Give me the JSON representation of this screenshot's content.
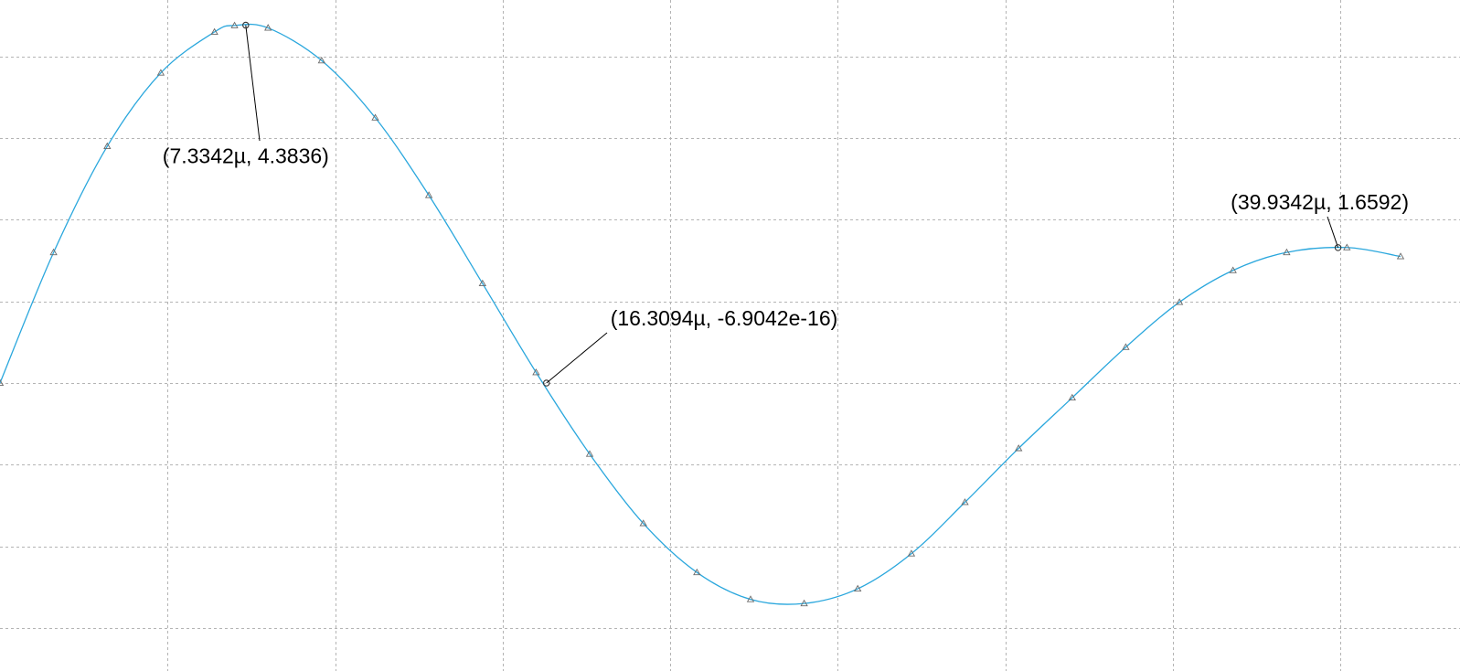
{
  "chart_data": {
    "type": "line",
    "title": "",
    "xlabel": "",
    "ylabel": "",
    "grid": true,
    "x_unit_suffix": "µ",
    "xlim": [
      0,
      42.6
    ],
    "ylim": [
      -5.25,
      4.6
    ],
    "x_grid_step": 5,
    "y_grid_values": [
      4,
      3,
      2,
      1,
      0,
      -1,
      -2,
      -3
    ],
    "series": [
      {
        "color": "#2aa7dd",
        "marker": "triangle",
        "x": [
          0,
          1.6,
          3.2,
          4.8,
          6.4,
          7.0,
          8.0,
          9.6,
          11.2,
          12.8,
          14.4,
          16.0,
          17.6,
          19.2,
          20.8,
          22.4,
          24.0,
          25.6,
          27.2,
          28.8,
          30.4,
          32.0,
          33.6,
          35.2,
          36.8,
          38.4,
          40.2,
          41.8
        ],
        "y": [
          0,
          1.6,
          2.9,
          3.8,
          4.3,
          4.38,
          4.35,
          3.95,
          3.25,
          2.3,
          1.22,
          0.13,
          -0.87,
          -1.72,
          -2.32,
          -2.65,
          -2.7,
          -2.52,
          -2.09,
          -1.46,
          -0.8,
          -0.18,
          0.44,
          0.99,
          1.38,
          1.6,
          1.66,
          1.55
        ]
      }
    ],
    "annotations": [
      {
        "label": "(7.3342µ, 4.3836)",
        "x": 7.3342,
        "y": 4.3836
      },
      {
        "label": "(16.3094µ, -6.9042e-16)",
        "x": 16.3094,
        "y": -6.9042e-16
      },
      {
        "label": "(39.9342µ, 1.6592)",
        "x": 39.9342,
        "y": 1.6592
      }
    ]
  }
}
